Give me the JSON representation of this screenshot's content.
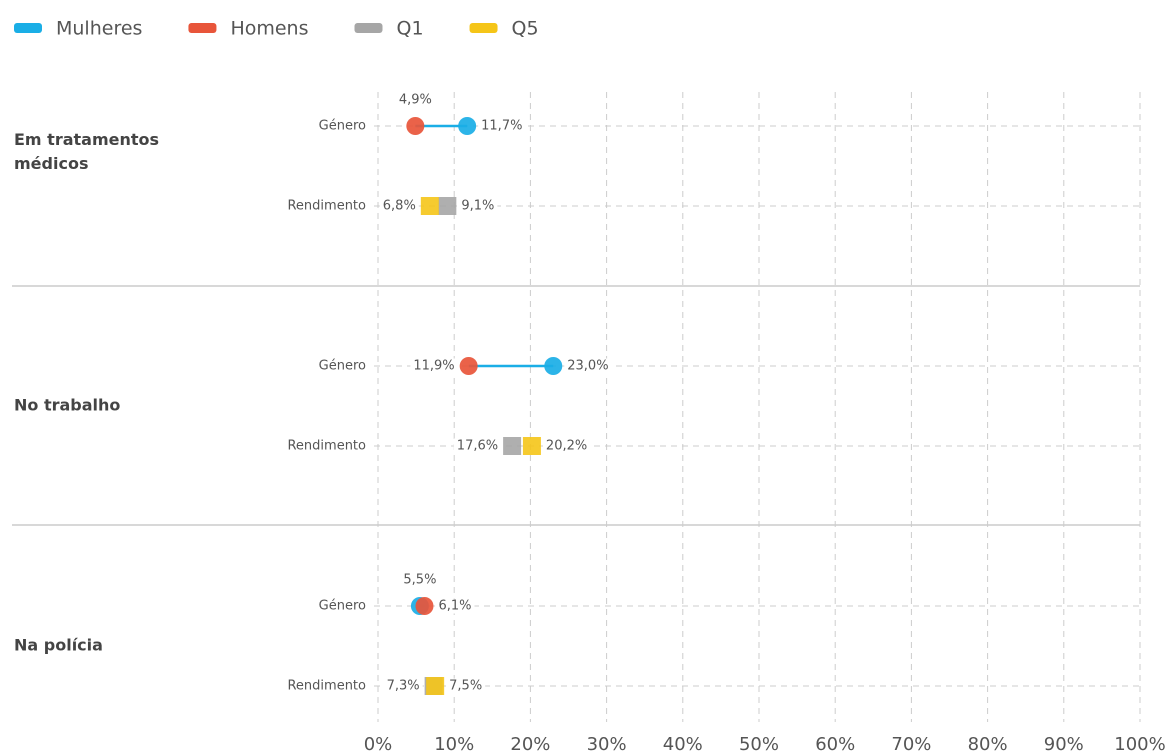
{
  "chart_data": {
    "type": "dumbbell",
    "categories": [
      "Em tratamentos médicos",
      "No trabalho",
      "Na polícia"
    ],
    "row_labels": [
      "Género",
      "Rendimento"
    ],
    "series": [
      {
        "name": "Mulheres",
        "color": "#1aaee6",
        "row": 0,
        "values": [
          11.7,
          23.0,
          5.5
        ],
        "value_labels": [
          "11,7%",
          "23,0%",
          "5,5%"
        ]
      },
      {
        "name": "Homens",
        "color": "#e8553a",
        "row": 0,
        "values": [
          4.9,
          11.9,
          6.1
        ],
        "value_labels": [
          "4,9%",
          "11,9%",
          "6,1%"
        ]
      },
      {
        "name": "Q1",
        "color": "#a6a6a6",
        "row": 1,
        "values": [
          9.1,
          17.6,
          7.3
        ],
        "value_labels": [
          "9,1%",
          "17,6%",
          "7,3%"
        ]
      },
      {
        "name": "Q5",
        "color": "#f5c518",
        "row": 1,
        "values": [
          6.8,
          20.2,
          7.5
        ],
        "value_labels": [
          "6,8%",
          "20,2%",
          "7,5%"
        ]
      }
    ],
    "xlim": [
      0,
      100
    ],
    "xticks": [
      {
        "value": 0,
        "label": "0%"
      },
      {
        "value": 10,
        "label": "10%"
      },
      {
        "value": 20,
        "label": "20%"
      },
      {
        "value": 30,
        "label": "30%"
      },
      {
        "value": 40,
        "label": "40%"
      },
      {
        "value": 50,
        "label": "50%"
      },
      {
        "value": 60,
        "label": "60%"
      },
      {
        "value": 70,
        "label": "70%"
      },
      {
        "value": 80,
        "label": "80%"
      },
      {
        "value": 90,
        "label": "90%"
      },
      {
        "value": 100,
        "label": "100%"
      }
    ],
    "grid": true
  }
}
